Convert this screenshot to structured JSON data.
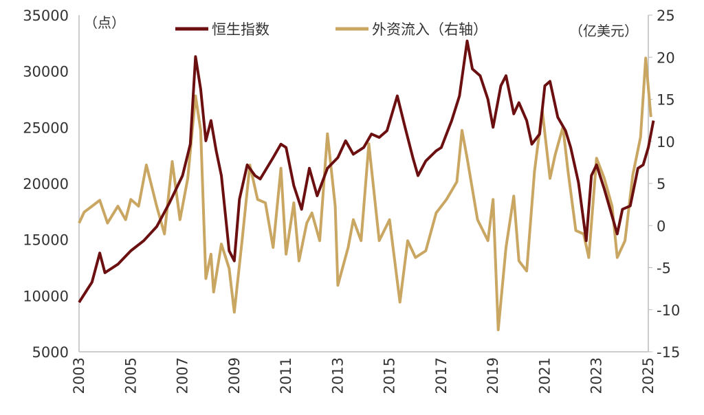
{
  "chart_data": {
    "type": "line",
    "left_unit_label": "（点）",
    "right_unit_label": "（亿美元）",
    "legend_placement": "top",
    "grid": false,
    "x_ticks": [
      "2003",
      "2005",
      "2007",
      "2009",
      "2011",
      "2013",
      "2015",
      "2017",
      "2019",
      "2021",
      "2023",
      "2025"
    ],
    "xlim": [
      2003,
      2025.2
    ],
    "y_left": {
      "ticks": [
        "35000",
        "30000",
        "25000",
        "20000",
        "15000",
        "10000",
        "5000"
      ],
      "lim": [
        5000,
        35000
      ]
    },
    "y_right": {
      "ticks": [
        "25",
        "20",
        "15",
        "10",
        "5",
        "0",
        "-5",
        "-10",
        "-15"
      ],
      "lim": [
        -15,
        25
      ]
    },
    "colors": {
      "hsi": "#6b0f10",
      "flow": "#c9a662"
    },
    "series": [
      {
        "name": "恒生指数",
        "axis": "left",
        "x": [
          2003.0,
          2003.5,
          2003.8,
          2004.0,
          2004.5,
          2005.0,
          2005.5,
          2006.0,
          2006.5,
          2007.0,
          2007.3,
          2007.5,
          2007.7,
          2007.9,
          2008.1,
          2008.3,
          2008.5,
          2008.8,
          2009.0,
          2009.2,
          2009.5,
          2009.8,
          2010.0,
          2010.5,
          2010.8,
          2011.0,
          2011.3,
          2011.6,
          2011.9,
          2012.2,
          2012.6,
          2013.0,
          2013.3,
          2013.6,
          2014.0,
          2014.3,
          2014.6,
          2014.9,
          2015.3,
          2015.6,
          2015.9,
          2016.1,
          2016.4,
          2016.8,
          2017.0,
          2017.4,
          2017.7,
          2018.0,
          2018.2,
          2018.5,
          2018.8,
          2019.0,
          2019.3,
          2019.5,
          2019.8,
          2020.0,
          2020.3,
          2020.5,
          2020.8,
          2021.0,
          2021.2,
          2021.5,
          2021.8,
          2022.0,
          2022.3,
          2022.6,
          2022.8,
          2023.0,
          2023.3,
          2023.6,
          2023.8,
          2024.0,
          2024.3,
          2024.6,
          2024.8,
          2025.0,
          2025.2
        ],
        "values": [
          9400,
          11200,
          13800,
          12050,
          12800,
          14000,
          14900,
          16150,
          18300,
          20700,
          23500,
          31300,
          28400,
          23800,
          25600,
          22900,
          20700,
          14000,
          13100,
          18600,
          21650,
          20700,
          20400,
          22300,
          23500,
          23200,
          19800,
          17700,
          21350,
          18900,
          21350,
          22300,
          23800,
          22600,
          23200,
          24400,
          24100,
          24700,
          27800,
          25000,
          22300,
          20700,
          22000,
          22900,
          23200,
          25600,
          27800,
          32700,
          30200,
          29600,
          27500,
          25000,
          28700,
          29600,
          26200,
          27200,
          25600,
          23500,
          24400,
          28700,
          29100,
          25900,
          24700,
          23200,
          20100,
          14900,
          20700,
          21650,
          19500,
          17100,
          15500,
          17700,
          18000,
          21350,
          21650,
          23200,
          25600
        ]
      },
      {
        "name": "外资流入（右轴）",
        "axis": "right",
        "x": [
          2003.0,
          2003.2,
          2003.5,
          2003.8,
          2004.1,
          2004.5,
          2004.8,
          2005.0,
          2005.3,
          2005.6,
          2006.0,
          2006.3,
          2006.6,
          2006.9,
          2007.2,
          2007.5,
          2007.7,
          2007.9,
          2008.1,
          2008.2,
          2008.5,
          2008.8,
          2009.0,
          2009.3,
          2009.6,
          2009.9,
          2010.2,
          2010.5,
          2010.8,
          2011.0,
          2011.3,
          2011.5,
          2011.8,
          2012.0,
          2012.3,
          2012.6,
          2012.9,
          2013.0,
          2013.4,
          2013.6,
          2013.9,
          2014.2,
          2014.6,
          2015.0,
          2015.4,
          2015.7,
          2016.0,
          2016.4,
          2016.8,
          2017.2,
          2017.6,
          2017.8,
          2018.0,
          2018.4,
          2018.8,
          2019.0,
          2019.2,
          2019.5,
          2019.8,
          2020.0,
          2020.3,
          2020.6,
          2020.9,
          2021.2,
          2021.4,
          2021.7,
          2021.9,
          2022.2,
          2022.5,
          2022.7,
          2023.0,
          2023.3,
          2023.6,
          2023.8,
          2024.1,
          2024.4,
          2024.7,
          2024.9,
          2025.1
        ],
        "values": [
          0.3,
          1.6,
          2.3,
          3.0,
          0.3,
          2.3,
          0.7,
          3.1,
          2.3,
          7.2,
          2.3,
          -1.0,
          7.6,
          0.7,
          5.6,
          15.4,
          11.3,
          -6.3,
          -3.4,
          -7.9,
          -2.2,
          -5.1,
          -10.3,
          -1.8,
          7.2,
          3.1,
          2.7,
          -2.6,
          6.8,
          -3.4,
          2.7,
          -4.2,
          0.3,
          1.5,
          -1.8,
          10.9,
          2.3,
          -7.1,
          -2.6,
          0.7,
          -1.8,
          9.7,
          -1.8,
          0.7,
          -9.1,
          -1.8,
          -3.8,
          -3.0,
          1.5,
          3.1,
          5.2,
          11.3,
          8.0,
          0.7,
          -1.8,
          3.1,
          -12.4,
          -2.6,
          3.5,
          -4.2,
          -5.4,
          6.4,
          13.7,
          5.6,
          8.4,
          11.7,
          6.4,
          -0.6,
          -1.0,
          -3.8,
          8.0,
          5.6,
          2.3,
          -3.8,
          -1.8,
          6.0,
          10.5,
          19.9,
          12.9
        ]
      }
    ]
  }
}
